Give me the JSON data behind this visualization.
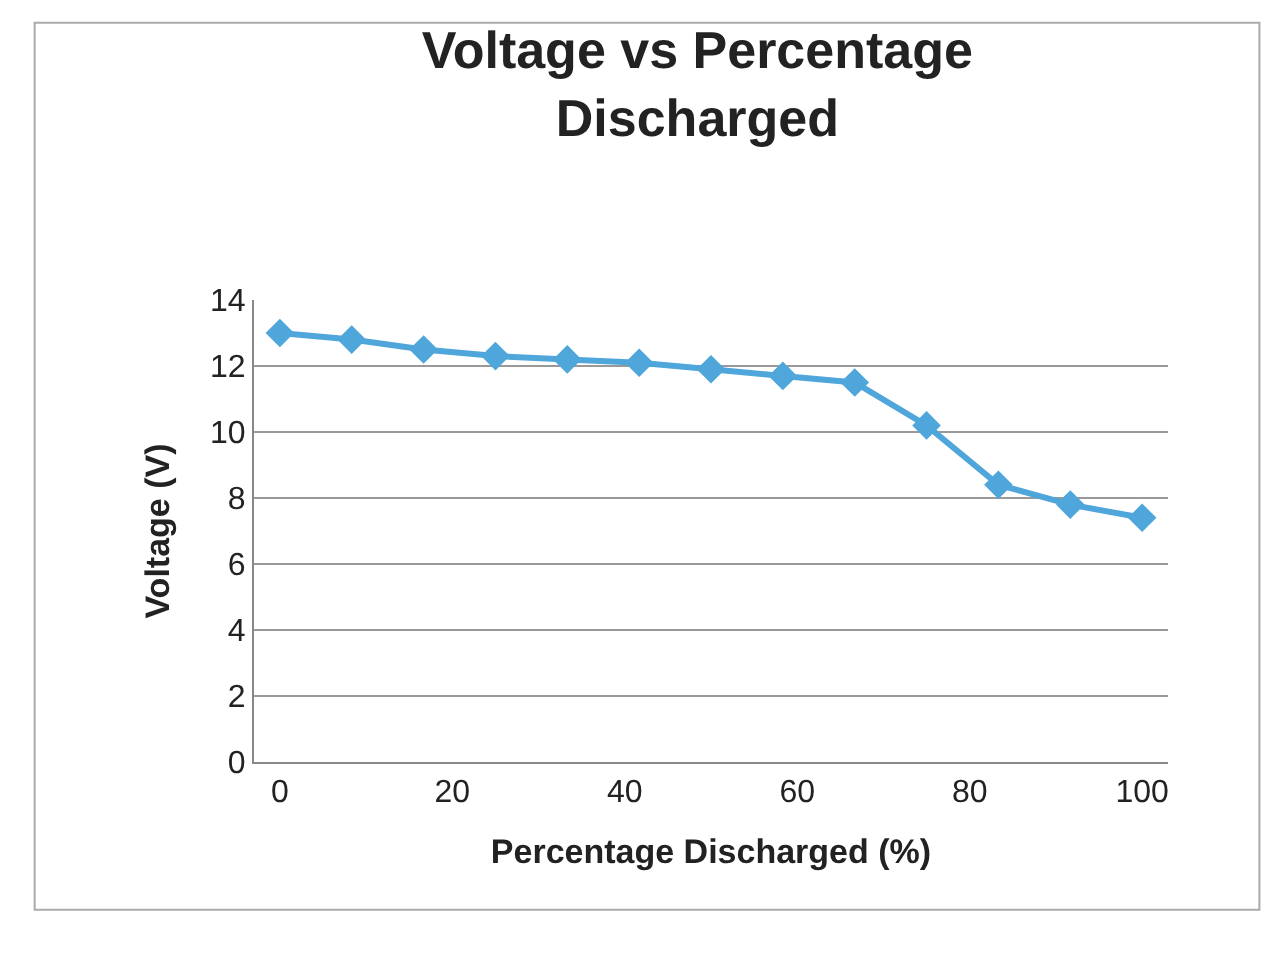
{
  "chart_data": {
    "type": "line",
    "title": "Voltage vs Percentage Discharged",
    "xlabel": "Percentage Discharged (%)",
    "ylabel": "Voltage (V)",
    "x": [
      0,
      8.33,
      16.67,
      25,
      33.33,
      41.67,
      50,
      58.33,
      66.67,
      75,
      83.33,
      91.67,
      100
    ],
    "series": [
      {
        "color": "#4fa6db",
        "values": [
          13.0,
          12.8,
          12.5,
          12.3,
          12.2,
          12.1,
          11.9,
          11.7,
          11.5,
          10.2,
          8.4,
          7.8,
          7.4
        ]
      }
    ],
    "xlim": [
      -3,
      103
    ],
    "xticks": [
      0,
      20,
      40,
      60,
      80,
      100
    ],
    "ylim": [
      0,
      14
    ],
    "yticks": [
      0,
      2,
      4,
      6,
      8,
      10,
      12,
      14
    ],
    "grid": "y",
    "marker": "diamond",
    "line_style": "solid"
  }
}
